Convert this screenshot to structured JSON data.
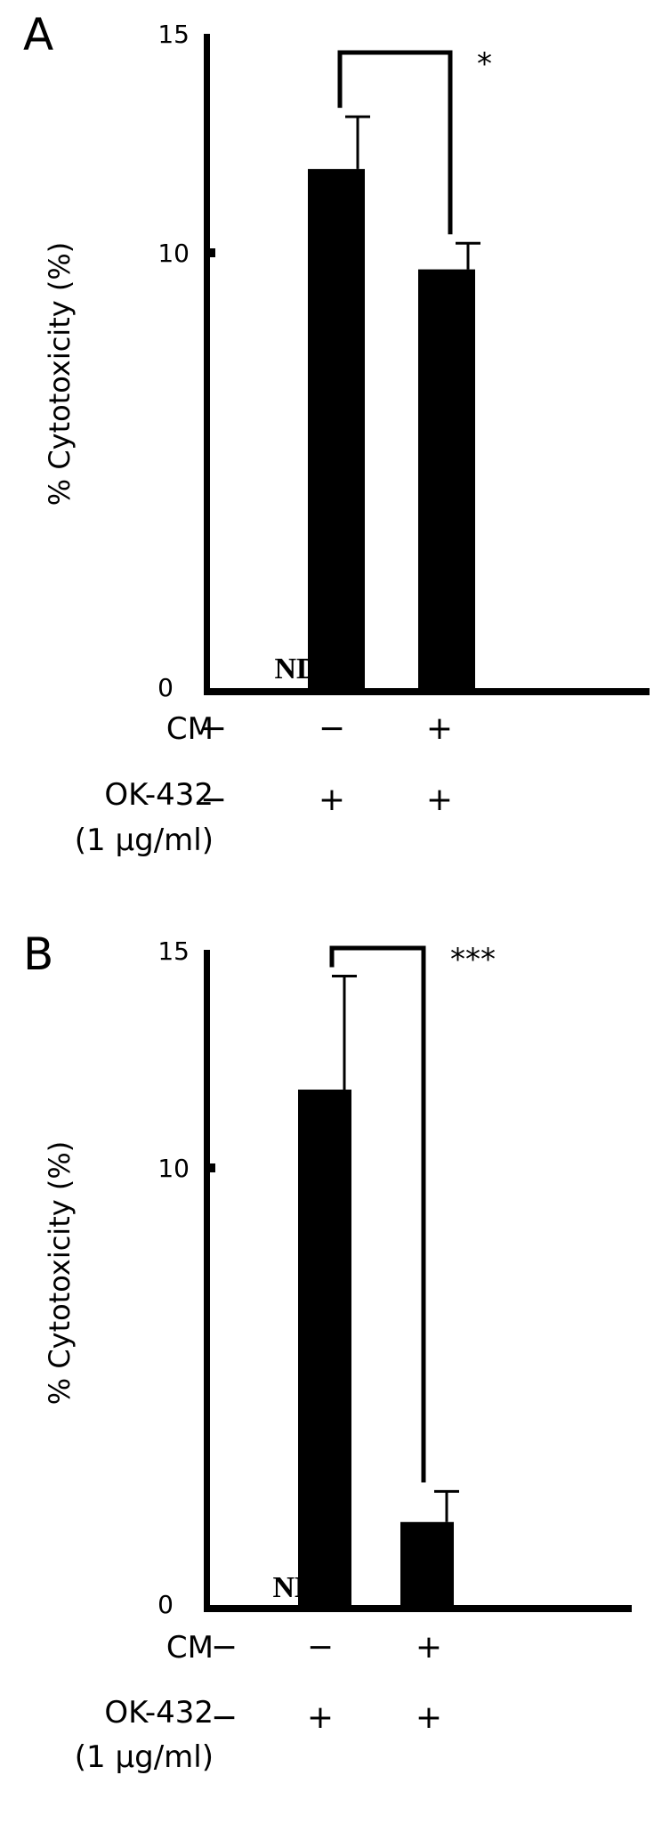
{
  "chart_data": [
    {
      "panel": "A",
      "type": "bar",
      "ylabel": "% Cytotoxicity (%)",
      "ylim": [
        0,
        15
      ],
      "yticks": [
        "0",
        "10",
        "15"
      ],
      "bars": [
        {
          "value": 0,
          "error": 0,
          "label": "ND",
          "CM": "−",
          "OK432": "−"
        },
        {
          "value": 11.9,
          "error": 1.2,
          "CM": "−",
          "OK432": "+"
        },
        {
          "value": 9.6,
          "error": 0.6,
          "CM": "+",
          "OK432": "+"
        }
      ],
      "significance": {
        "from": 1,
        "to": 2,
        "label": "*"
      },
      "conditions": {
        "CM": "CM",
        "OK432": "OK-432",
        "OK432_dose": "(1 μg/ml)"
      }
    },
    {
      "panel": "B",
      "type": "bar",
      "ylabel": "% Cytotoxicity (%)",
      "ylim": [
        0,
        15
      ],
      "yticks": [
        "0",
        "10",
        "15"
      ],
      "bars": [
        {
          "value": 0,
          "error": 0,
          "label": "ND",
          "CM": "−",
          "OK432": "−"
        },
        {
          "value": 11.8,
          "error": 2.6,
          "CM": "−",
          "OK432": "+"
        },
        {
          "value": 1.9,
          "error": 0.7,
          "CM": "+",
          "OK432": "+"
        }
      ],
      "significance": {
        "from": 1,
        "to": 2,
        "label": "***"
      },
      "conditions": {
        "CM": "CM",
        "OK432": "OK-432",
        "OK432_dose": "(1 μg/ml)"
      }
    }
  ]
}
